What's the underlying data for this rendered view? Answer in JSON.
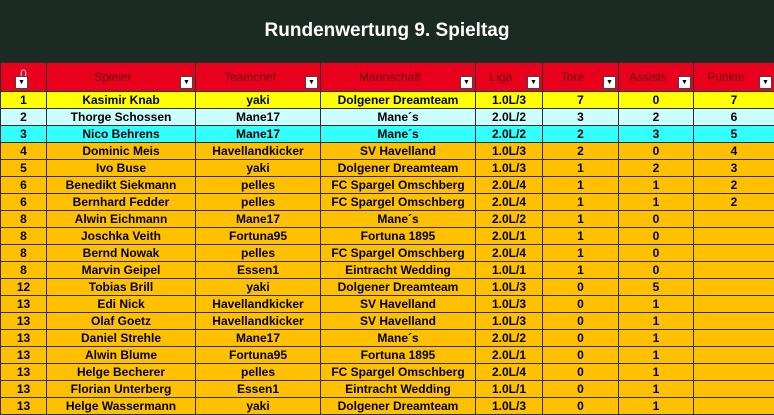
{
  "title": "Rundenwertung 9. Spieltag",
  "colors": {
    "header_bg": "#e8001c",
    "title_bg": "#1b2b24",
    "row_yellow": "#ffff00",
    "row_lightcyan": "#ccffff",
    "row_cyan": "#33ffff",
    "row_orange": "#ffc000"
  },
  "columns": [
    {
      "key": "rank",
      "label": "0"
    },
    {
      "key": "spieler",
      "label": "Spieler"
    },
    {
      "key": "teamchef",
      "label": "Teamchef"
    },
    {
      "key": "mannschaft",
      "label": "Mannschaft"
    },
    {
      "key": "liga",
      "label": "Liga"
    },
    {
      "key": "tore",
      "label": "Tore"
    },
    {
      "key": "assists",
      "label": "Assists"
    },
    {
      "key": "punkte",
      "label": "Punkte"
    }
  ],
  "dropdown_icon": "filter-dropdown-icon",
  "rows": [
    {
      "style": "yellow",
      "rank": "1",
      "spieler": "Kasimir Knab",
      "teamchef": "yaki",
      "mannschaft": "Dolgener Dreamteam",
      "liga": "1.0L/3",
      "tore": "7",
      "assists": "0",
      "punkte": "7"
    },
    {
      "style": "lightcyan",
      "rank": "2",
      "spieler": "Thorge Schossen",
      "teamchef": "Mane17",
      "mannschaft": "Mane´s",
      "liga": "2.0L/2",
      "tore": "3",
      "assists": "2",
      "punkte": "6"
    },
    {
      "style": "cyan",
      "rank": "3",
      "spieler": "Nico Behrens",
      "teamchef": "Mane17",
      "mannschaft": "Mane´s",
      "liga": "2.0L/2",
      "tore": "2",
      "assists": "3",
      "punkte": "5"
    },
    {
      "style": "orange",
      "rank": "4",
      "spieler": "Dominic Meis",
      "teamchef": "Havellandkicker",
      "mannschaft": "SV Havelland",
      "liga": "1.0L/3",
      "tore": "2",
      "assists": "0",
      "punkte": "4"
    },
    {
      "style": "orange",
      "rank": "5",
      "spieler": "Ivo Buse",
      "teamchef": "yaki",
      "mannschaft": "Dolgener Dreamteam",
      "liga": "1.0L/3",
      "tore": "1",
      "assists": "2",
      "punkte": "3"
    },
    {
      "style": "orange",
      "rank": "6",
      "spieler": "Benedikt Siekmann",
      "teamchef": "pelles",
      "mannschaft": "FC Spargel Omschberg",
      "liga": "2.0L/4",
      "tore": "1",
      "assists": "1",
      "punkte": "2"
    },
    {
      "style": "orange",
      "rank": "6",
      "spieler": "Bernhard Fedder",
      "teamchef": "pelles",
      "mannschaft": "FC Spargel Omschberg",
      "liga": "2.0L/4",
      "tore": "1",
      "assists": "1",
      "punkte": "2"
    },
    {
      "style": "orange",
      "rank": "8",
      "spieler": "Alwin Eichmann",
      "teamchef": "Mane17",
      "mannschaft": "Mane´s",
      "liga": "2.0L/2",
      "tore": "1",
      "assists": "0",
      "punkte": ""
    },
    {
      "style": "orange",
      "rank": "8",
      "spieler": "Joschka Veith",
      "teamchef": "Fortuna95",
      "mannschaft": "Fortuna 1895",
      "liga": "2.0L/1",
      "tore": "1",
      "assists": "0",
      "punkte": ""
    },
    {
      "style": "orange",
      "rank": "8",
      "spieler": "Bernd Nowak",
      "teamchef": "pelles",
      "mannschaft": "FC Spargel Omschberg",
      "liga": "2.0L/4",
      "tore": "1",
      "assists": "0",
      "punkte": ""
    },
    {
      "style": "orange",
      "rank": "8",
      "spieler": "Marvin Geipel",
      "teamchef": "Essen1",
      "mannschaft": "Eintracht Wedding",
      "liga": "1.0L/1",
      "tore": "1",
      "assists": "0",
      "punkte": ""
    },
    {
      "style": "orange",
      "rank": "12",
      "spieler": "Tobias Brill",
      "teamchef": "yaki",
      "mannschaft": "Dolgener Dreamteam",
      "liga": "1.0L/3",
      "tore": "0",
      "assists": "5",
      "punkte": ""
    },
    {
      "style": "orange",
      "rank": "13",
      "spieler": "Edi Nick",
      "teamchef": "Havellandkicker",
      "mannschaft": "SV Havelland",
      "liga": "1.0L/3",
      "tore": "0",
      "assists": "1",
      "punkte": ""
    },
    {
      "style": "orange",
      "rank": "13",
      "spieler": "Olaf Goetz",
      "teamchef": "Havellandkicker",
      "mannschaft": "SV Havelland",
      "liga": "1.0L/3",
      "tore": "0",
      "assists": "1",
      "punkte": ""
    },
    {
      "style": "orange",
      "rank": "13",
      "spieler": "Daniel Strehle",
      "teamchef": "Mane17",
      "mannschaft": "Mane´s",
      "liga": "2.0L/2",
      "tore": "0",
      "assists": "1",
      "punkte": ""
    },
    {
      "style": "orange",
      "rank": "13",
      "spieler": "Alwin Blume",
      "teamchef": "Fortuna95",
      "mannschaft": "Fortuna 1895",
      "liga": "2.0L/1",
      "tore": "0",
      "assists": "1",
      "punkte": ""
    },
    {
      "style": "orange",
      "rank": "13",
      "spieler": "Helge Becherer",
      "teamchef": "pelles",
      "mannschaft": "FC Spargel Omschberg",
      "liga": "2.0L/4",
      "tore": "0",
      "assists": "1",
      "punkte": ""
    },
    {
      "style": "orange",
      "rank": "13",
      "spieler": "Florian Unterberg",
      "teamchef": "Essen1",
      "mannschaft": "Eintracht Wedding",
      "liga": "1.0L/1",
      "tore": "0",
      "assists": "1",
      "punkte": ""
    },
    {
      "style": "orange",
      "rank": "13",
      "spieler": "Helge Wassermann",
      "teamchef": "yaki",
      "mannschaft": "Dolgener Dreamteam",
      "liga": "1.0L/3",
      "tore": "0",
      "assists": "1",
      "punkte": ""
    }
  ]
}
